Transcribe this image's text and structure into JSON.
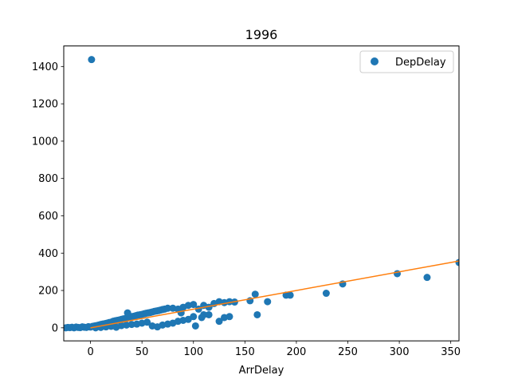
{
  "chart_data": {
    "type": "scatter",
    "title": "1996",
    "xlabel": "ArrDelay",
    "ylabel": "",
    "xlim": [
      -26,
      358
    ],
    "ylim": [
      -70,
      1510
    ],
    "x_ticks": [
      0,
      50,
      100,
      150,
      200,
      250,
      300,
      350
    ],
    "y_ticks": [
      0,
      200,
      400,
      600,
      800,
      1000,
      1200,
      1400
    ],
    "grid": false,
    "legend_position": "top-right",
    "colors": {
      "scatter": "#1f77b4",
      "line": "#ff7f0e"
    },
    "series": [
      {
        "name": "DepDelay",
        "kind": "scatter",
        "points": [
          [
            -24,
            0
          ],
          [
            -22,
            2
          ],
          [
            -20,
            1
          ],
          [
            -18,
            3
          ],
          [
            -16,
            0
          ],
          [
            -14,
            4
          ],
          [
            -12,
            2
          ],
          [
            -10,
            1
          ],
          [
            -8,
            5
          ],
          [
            -6,
            3
          ],
          [
            -4,
            2
          ],
          [
            -2,
            6
          ],
          [
            0,
            4
          ],
          [
            2,
            8
          ],
          [
            4,
            10
          ],
          [
            6,
            12
          ],
          [
            8,
            15
          ],
          [
            10,
            18
          ],
          [
            12,
            20
          ],
          [
            14,
            22
          ],
          [
            16,
            25
          ],
          [
            18,
            28
          ],
          [
            20,
            30
          ],
          [
            22,
            35
          ],
          [
            24,
            38
          ],
          [
            26,
            40
          ],
          [
            28,
            42
          ],
          [
            30,
            45
          ],
          [
            32,
            48
          ],
          [
            34,
            50
          ],
          [
            36,
            55
          ],
          [
            38,
            58
          ],
          [
            40,
            60
          ],
          [
            42,
            62
          ],
          [
            44,
            65
          ],
          [
            46,
            68
          ],
          [
            48,
            70
          ],
          [
            50,
            72
          ],
          [
            52,
            75
          ],
          [
            54,
            78
          ],
          [
            56,
            80
          ],
          [
            58,
            82
          ],
          [
            60,
            85
          ],
          [
            62,
            88
          ],
          [
            64,
            90
          ],
          [
            66,
            92
          ],
          [
            68,
            95
          ],
          [
            70,
            98
          ],
          [
            72,
            100
          ],
          [
            75,
            105
          ],
          [
            80,
            105
          ],
          [
            85,
            100
          ],
          [
            90,
            110
          ],
          [
            95,
            120
          ],
          [
            100,
            125
          ],
          [
            105,
            100
          ],
          [
            110,
            120
          ],
          [
            115,
            110
          ],
          [
            120,
            130
          ],
          [
            125,
            140
          ],
          [
            130,
            135
          ],
          [
            135,
            140
          ],
          [
            140,
            138
          ],
          [
            5,
            0
          ],
          [
            10,
            2
          ],
          [
            15,
            5
          ],
          [
            20,
            8
          ],
          [
            25,
            3
          ],
          [
            30,
            12
          ],
          [
            35,
            15
          ],
          [
            40,
            18
          ],
          [
            45,
            20
          ],
          [
            50,
            25
          ],
          [
            55,
            30
          ],
          [
            60,
            10
          ],
          [
            65,
            5
          ],
          [
            70,
            15
          ],
          [
            75,
            20
          ],
          [
            80,
            25
          ],
          [
            85,
            35
          ],
          [
            90,
            40
          ],
          [
            95,
            45
          ],
          [
            100,
            60
          ],
          [
            102,
            10
          ],
          [
            110,
            70
          ],
          [
            115,
            70
          ],
          [
            125,
            35
          ],
          [
            130,
            55
          ],
          [
            135,
            60
          ],
          [
            36,
            80
          ],
          [
            88,
            80
          ],
          [
            108,
            55
          ],
          [
            1,
            1437
          ],
          [
            155,
            145
          ],
          [
            160,
            180
          ],
          [
            162,
            70
          ],
          [
            172,
            140
          ],
          [
            190,
            175
          ],
          [
            194,
            175
          ],
          [
            229,
            185
          ],
          [
            245,
            235
          ],
          [
            298,
            290
          ],
          [
            327,
            270
          ],
          [
            358,
            350
          ]
        ]
      },
      {
        "name": "",
        "kind": "line",
        "points": [
          [
            0,
            0
          ],
          [
            358,
            358
          ]
        ]
      }
    ]
  }
}
